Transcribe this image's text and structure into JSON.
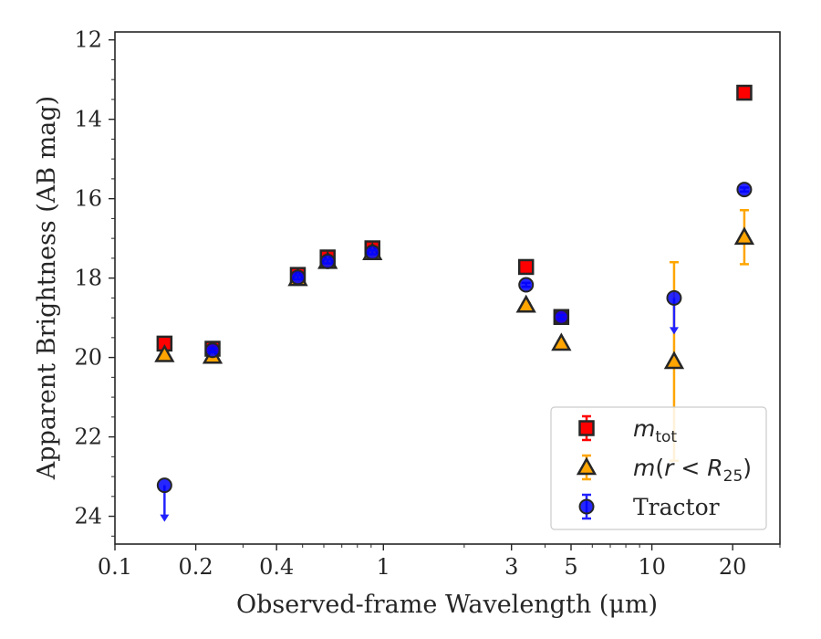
{
  "chart_data": {
    "type": "scatter",
    "title": "",
    "xlabel": "Observed-frame Wavelength (μm)",
    "ylabel": "Apparent Brightness (AB mag)",
    "xscale": "log",
    "yinverted": true,
    "xlim": [
      0.1,
      30
    ],
    "ylim": [
      24.7,
      11.8
    ],
    "xticks": [
      {
        "value": 0.1,
        "label": "0.1"
      },
      {
        "value": 0.2,
        "label": "0.2"
      },
      {
        "value": 0.4,
        "label": "0.4"
      },
      {
        "value": 1,
        "label": "1"
      },
      {
        "value": 3,
        "label": "3"
      },
      {
        "value": 5,
        "label": "5"
      },
      {
        "value": 10,
        "label": "10"
      },
      {
        "value": 20,
        "label": "20"
      }
    ],
    "yticks": [
      12,
      14,
      16,
      18,
      20,
      22,
      24
    ],
    "legend_position": "lower-right",
    "series": [
      {
        "name": "m_tot",
        "legend_label": {
          "italic": "m",
          "sub": "tot"
        },
        "marker": "square",
        "color": "#ff0000",
        "errcolor": "#ff0000",
        "points": [
          {
            "x": 0.153,
            "y": 19.65,
            "err": 0.08
          },
          {
            "x": 0.231,
            "y": 19.78,
            "err": 0.08
          },
          {
            "x": 0.48,
            "y": 17.92,
            "err": 0.1
          },
          {
            "x": 0.62,
            "y": 17.48,
            "err": 0.1
          },
          {
            "x": 0.91,
            "y": 17.25,
            "err": 0.1
          },
          {
            "x": 3.4,
            "y": 17.72,
            "err": 0.06
          },
          {
            "x": 4.6,
            "y": 18.98,
            "err": 0.06
          },
          {
            "x": 22.1,
            "y": 13.33,
            "err": 0.05
          }
        ]
      },
      {
        "name": "m(r < R25)",
        "legend_label": {
          "italic": "m",
          "mid": "(r < R",
          "sub": "25",
          "end": ")"
        },
        "marker": "triangle",
        "color": "#ffa500",
        "errcolor": "#ffa500",
        "points": [
          {
            "x": 0.153,
            "y": 19.93,
            "err": 0.05
          },
          {
            "x": 0.231,
            "y": 19.97,
            "err": 0.05
          },
          {
            "x": 0.48,
            "y": 18.01,
            "err": 0.05
          },
          {
            "x": 0.62,
            "y": 17.58,
            "err": 0.05
          },
          {
            "x": 0.91,
            "y": 17.36,
            "err": 0.05
          },
          {
            "x": 3.4,
            "y": 18.68,
            "err": 0.05
          },
          {
            "x": 4.6,
            "y": 19.64,
            "err": 0.05
          },
          {
            "x": 12.1,
            "y": 20.1,
            "err": 2.5
          },
          {
            "x": 22.1,
            "y": 16.97,
            "err": 0.68
          }
        ]
      },
      {
        "name": "Tractor",
        "legend_label": {
          "text": "Tractor"
        },
        "marker": "circle",
        "color": "#0000ff",
        "errcolor": "#2222ff",
        "points": [
          {
            "x": 0.153,
            "y": 23.22,
            "upper_limit": true
          },
          {
            "x": 0.231,
            "y": 19.82,
            "err": 0.05
          },
          {
            "x": 0.48,
            "y": 17.98,
            "err": 0.05
          },
          {
            "x": 0.62,
            "y": 17.58,
            "err": 0.05
          },
          {
            "x": 0.91,
            "y": 17.35,
            "err": 0.05
          },
          {
            "x": 3.4,
            "y": 18.17,
            "err": 0.05
          },
          {
            "x": 4.6,
            "y": 18.98,
            "err": 0.05
          },
          {
            "x": 12.1,
            "y": 18.5,
            "upper_limit": true
          },
          {
            "x": 22.1,
            "y": 15.77,
            "err": 0.05
          }
        ]
      }
    ]
  }
}
